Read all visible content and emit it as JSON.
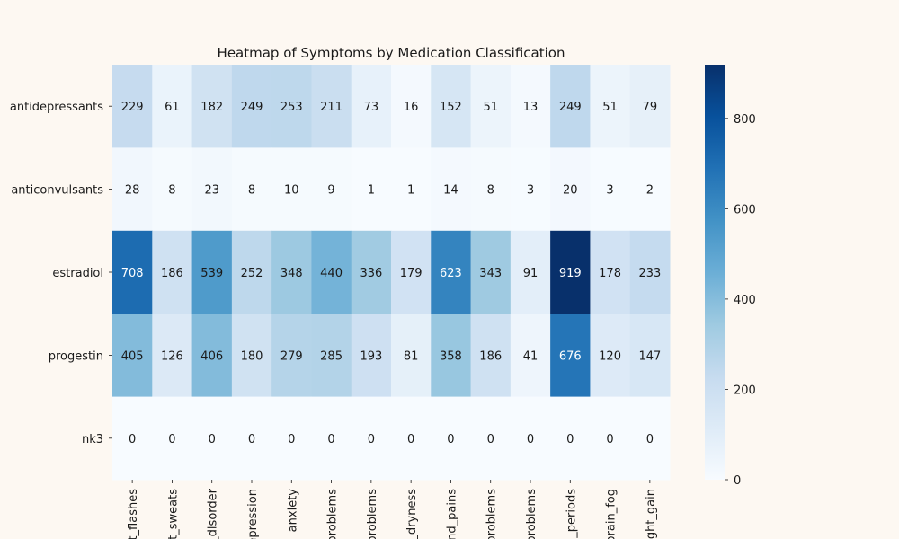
{
  "chart_data": {
    "type": "heatmap",
    "title": "Heatmap of Symptoms by Medication Classification",
    "rows": [
      "antidepressants",
      "anticonvulsants",
      "estradiol",
      "progestin",
      "nk3"
    ],
    "columns": [
      "t_flashes",
      "t_sweats",
      "_disorder",
      "epression",
      "anxiety",
      "problems",
      "problems",
      "_dryness",
      "nd_pains",
      "problems",
      "problems",
      "_periods",
      "prain_fog",
      "ght_gain"
    ],
    "values": [
      [
        229,
        61,
        182,
        249,
        253,
        211,
        73,
        16,
        152,
        51,
        13,
        249,
        51,
        79
      ],
      [
        28,
        8,
        23,
        8,
        10,
        9,
        1,
        1,
        14,
        8,
        3,
        20,
        3,
        2
      ],
      [
        708,
        186,
        539,
        252,
        348,
        440,
        336,
        179,
        623,
        343,
        91,
        919,
        178,
        233
      ],
      [
        405,
        126,
        406,
        180,
        279,
        285,
        193,
        81,
        358,
        186,
        41,
        676,
        120,
        147
      ],
      [
        0,
        0,
        0,
        0,
        0,
        0,
        0,
        0,
        0,
        0,
        0,
        0,
        0,
        0
      ]
    ],
    "colorbar": {
      "min": 0,
      "max": 919,
      "ticks": [
        0,
        200,
        400,
        600,
        800
      ],
      "colormap": "Blues",
      "colors": [
        "#f7fbff",
        "#deebf7",
        "#c6dbef",
        "#9ecae1",
        "#6baed6",
        "#4292c6",
        "#2171b5",
        "#08519c",
        "#08306b"
      ]
    },
    "annotations": "cell values shown in each cell",
    "grid": false
  }
}
